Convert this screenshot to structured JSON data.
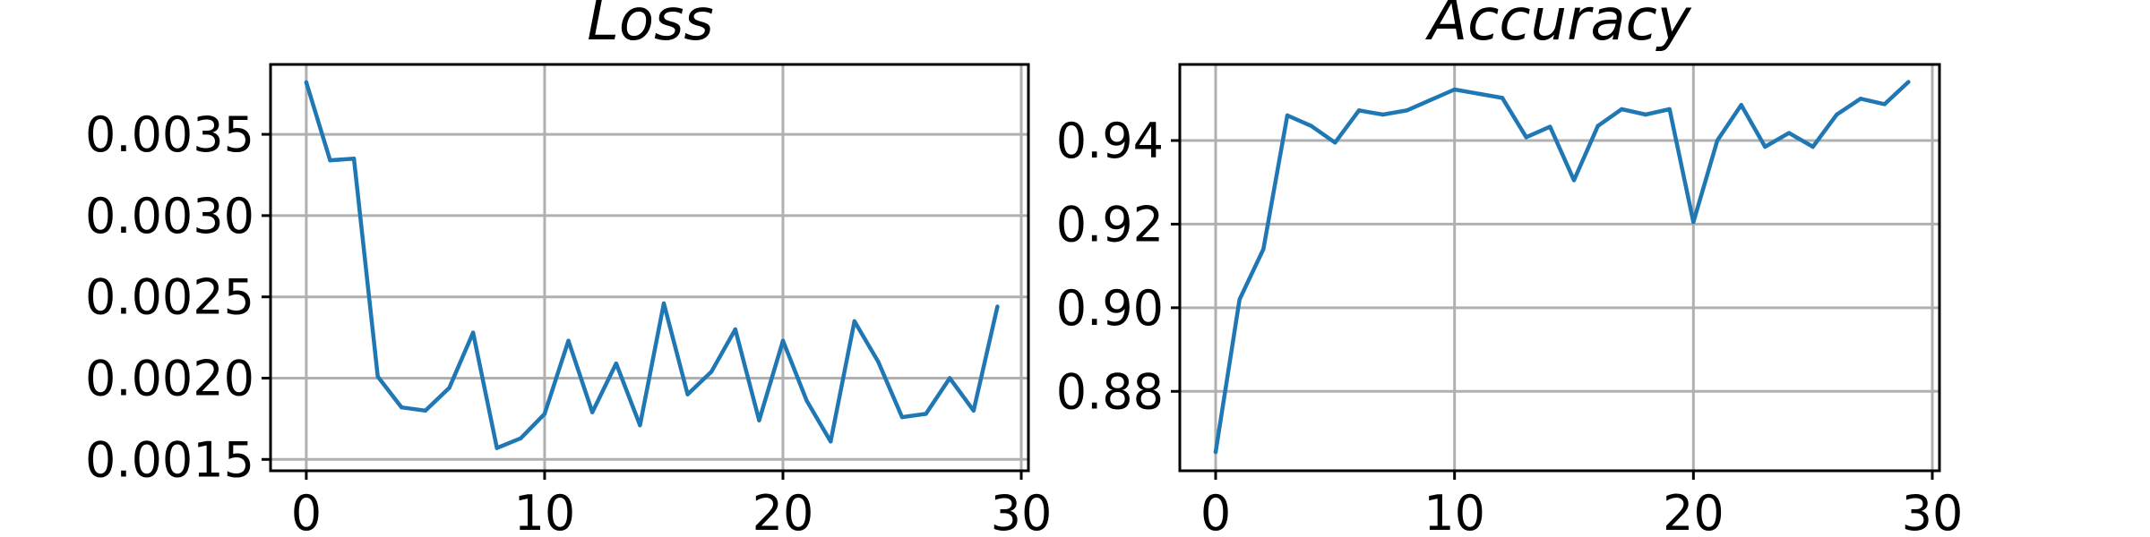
{
  "chart_data": [
    {
      "type": "line",
      "title": "Loss",
      "xlabel": "",
      "ylabel": "",
      "xlim": [
        -1.5,
        30.3
      ],
      "ylim": [
        0.00143,
        0.00393
      ],
      "xticks": [
        0,
        10,
        20,
        30
      ],
      "xtick_labels": [
        "0",
        "10",
        "20",
        "30"
      ],
      "yticks": [
        0.0015,
        0.002,
        0.0025,
        0.003,
        0.0035
      ],
      "ytick_labels": [
        "0.0015",
        "0.0020",
        "0.0025",
        "0.0030",
        "0.0035"
      ],
      "grid": true,
      "color": "#1f77b4",
      "x": [
        0,
        1,
        2,
        3,
        4,
        5,
        6,
        7,
        8,
        9,
        10,
        11,
        12,
        13,
        14,
        15,
        16,
        17,
        18,
        19,
        20,
        21,
        22,
        23,
        24,
        25,
        26,
        27,
        28,
        29
      ],
      "values": [
        0.00382,
        0.00334,
        0.00335,
        0.00201,
        0.00182,
        0.0018,
        0.00194,
        0.00228,
        0.00157,
        0.00163,
        0.00178,
        0.00223,
        0.00179,
        0.00209,
        0.00171,
        0.00246,
        0.0019,
        0.00204,
        0.0023,
        0.00174,
        0.00223,
        0.00186,
        0.00161,
        0.00235,
        0.0021,
        0.00176,
        0.00178,
        0.002,
        0.0018,
        0.00244
      ]
    },
    {
      "type": "line",
      "title": "Accuracy",
      "xlabel": "",
      "ylabel": "",
      "xlim": [
        -1.5,
        30.3
      ],
      "ylim": [
        0.861,
        0.9582
      ],
      "xticks": [
        0,
        10,
        20,
        30
      ],
      "xtick_labels": [
        "0",
        "10",
        "20",
        "30"
      ],
      "yticks": [
        0.88,
        0.9,
        0.92,
        0.94
      ],
      "ytick_labels": [
        "0.88",
        "0.90",
        "0.92",
        "0.94"
      ],
      "grid": true,
      "color": "#1f77b4",
      "x": [
        0,
        1,
        2,
        3,
        4,
        5,
        6,
        7,
        8,
        9,
        10,
        11,
        12,
        13,
        14,
        15,
        16,
        17,
        18,
        19,
        20,
        21,
        22,
        23,
        24,
        25,
        26,
        27,
        28,
        29
      ],
      "values": [
        0.8655,
        0.902,
        0.914,
        0.946,
        0.9435,
        0.9395,
        0.9472,
        0.9462,
        0.9472,
        0.9497,
        0.9522,
        0.9512,
        0.9502,
        0.9408,
        0.9433,
        0.9305,
        0.9435,
        0.9475,
        0.9462,
        0.9475,
        0.9205,
        0.94,
        0.9485,
        0.9385,
        0.9418,
        0.9385,
        0.9462,
        0.95,
        0.9487,
        0.954
      ]
    }
  ]
}
